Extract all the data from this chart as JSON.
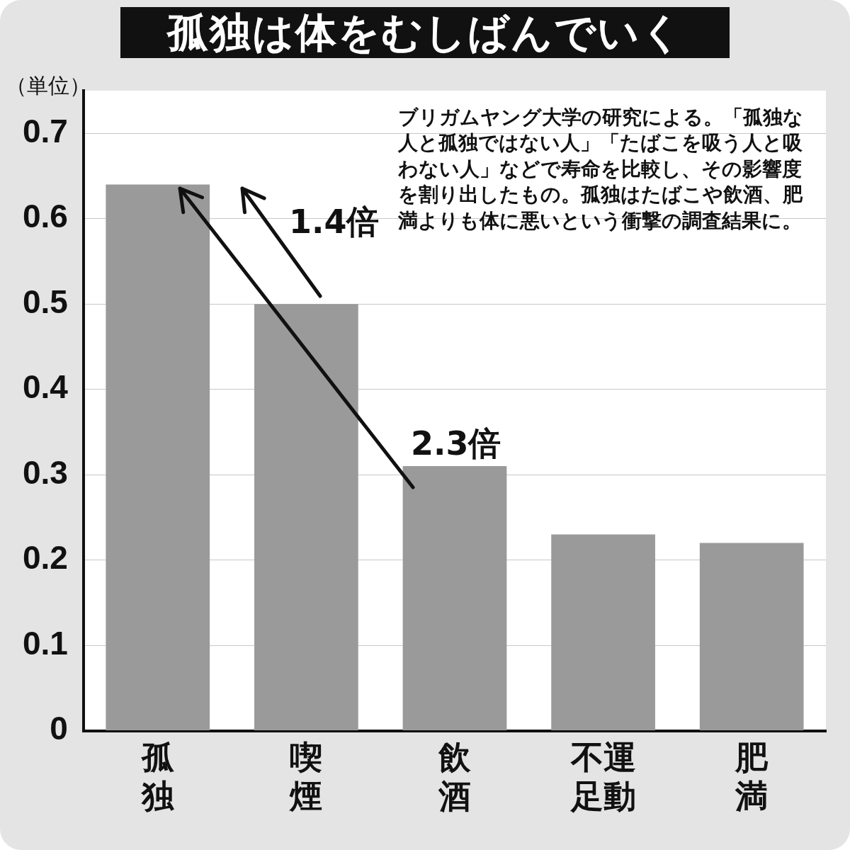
{
  "chart_data": {
    "type": "bar",
    "title": "孤独は体をむしばんでいく",
    "ylabel": "（単位）",
    "categories": [
      "孤独",
      "喫煙",
      "飲酒",
      "不運足動",
      "肥満"
    ],
    "values": [
      0.64,
      0.5,
      0.31,
      0.23,
      0.22
    ],
    "color": "#9a9a9a",
    "ylim": [
      0,
      0.75
    ],
    "yticks": [
      0,
      0.1,
      0.2,
      0.3,
      0.4,
      0.5,
      0.6,
      0.7
    ],
    "grid": "y",
    "annotations": [
      "1.4倍",
      "2.3倍",
      "ブリガムヤング大学の研究による。「孤独な人と孤独ではない人」「たばこを吸う人と吸わない人」などで寿命を比較し、その影響度を割り出したもの。孤独はたばこや飲酒、肥満よりも体に悪いという衝撃の調査結果に。"
    ]
  }
}
